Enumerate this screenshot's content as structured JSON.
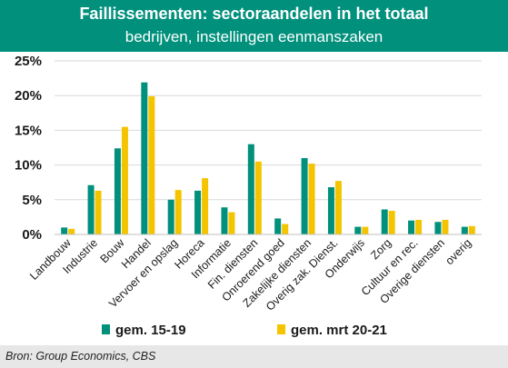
{
  "header": {
    "title": "Faillissementen: sectoraandelen in het totaal",
    "subtitle": "bedrijven, instellingen eenmanszaken"
  },
  "footer": {
    "source": "Bron: Group Economics, CBS"
  },
  "chart_data": {
    "type": "bar",
    "title": "Faillissementen: sectoraandelen in het totaal",
    "subtitle": "bedrijven, instellingen eenmanszaken",
    "xlabel": "",
    "ylabel": "",
    "ylim": [
      0,
      25
    ],
    "yticks": [
      0,
      5,
      10,
      15,
      20,
      25
    ],
    "ytick_labels": [
      "0%",
      "5%",
      "10%",
      "15%",
      "20%",
      "25%"
    ],
    "grid": true,
    "legend_position": "bottom",
    "categories": [
      "Landbouw",
      "Industrie",
      "Bouw",
      "Handel",
      "Vervoer en opslag",
      "Horeca",
      "Informatie",
      "Fin. diensten",
      "Onroerend goed",
      "Zakelijke diensten",
      "Overig zak. Dienst.",
      "Onderwijs",
      "Zorg",
      "Cultuur en rec.",
      "Overige diensten",
      "overig"
    ],
    "series": [
      {
        "name": "gem. 15-19",
        "color": "#00907c",
        "values": [
          1.0,
          7.1,
          12.4,
          21.9,
          5.0,
          6.3,
          3.9,
          13.0,
          2.3,
          11.0,
          6.8,
          1.1,
          3.6,
          2.0,
          1.8,
          1.1
        ]
      },
      {
        "name": "gem. mrt 20-21",
        "color": "#f5c400",
        "values": [
          0.8,
          6.3,
          15.5,
          19.9,
          6.4,
          8.1,
          3.2,
          10.5,
          1.5,
          10.2,
          7.7,
          1.1,
          3.4,
          2.1,
          2.1,
          1.2
        ]
      }
    ]
  }
}
